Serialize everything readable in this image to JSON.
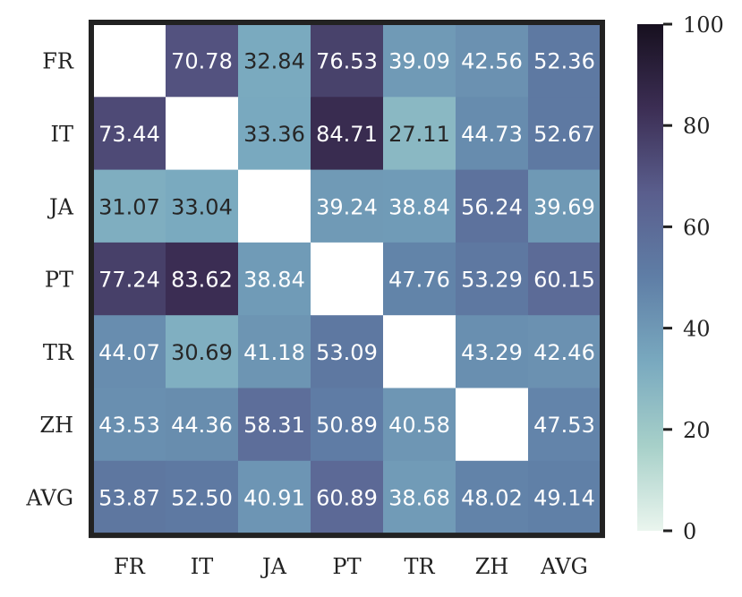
{
  "chart_data": {
    "type": "heatmap",
    "title": "",
    "xlabel": "",
    "ylabel": "",
    "x_categories": [
      "FR",
      "IT",
      "JA",
      "PT",
      "TR",
      "ZH",
      "AVG"
    ],
    "y_categories": [
      "FR",
      "IT",
      "JA",
      "PT",
      "TR",
      "ZH",
      "AVG"
    ],
    "values": [
      [
        null,
        70.78,
        32.84,
        76.53,
        39.09,
        42.56,
        52.36
      ],
      [
        73.44,
        null,
        33.36,
        84.71,
        27.11,
        44.73,
        52.67
      ],
      [
        31.07,
        33.04,
        null,
        39.24,
        38.84,
        56.24,
        39.69
      ],
      [
        77.24,
        83.62,
        38.84,
        null,
        47.76,
        53.29,
        60.15
      ],
      [
        44.07,
        30.69,
        41.18,
        53.09,
        null,
        43.29,
        42.46
      ],
      [
        43.53,
        44.36,
        58.31,
        50.89,
        40.58,
        null,
        47.53
      ],
      [
        53.87,
        52.5,
        40.91,
        60.89,
        38.68,
        48.02,
        49.14
      ]
    ],
    "value_labels": [
      [
        "",
        "70.78",
        "32.84",
        "76.53",
        "39.09",
        "42.56",
        "52.36"
      ],
      [
        "73.44",
        "",
        "33.36",
        "84.71",
        "27.11",
        "44.73",
        "52.67"
      ],
      [
        "31.07",
        "33.04",
        "",
        "39.24",
        "38.84",
        "56.24",
        "39.69"
      ],
      [
        "77.24",
        "83.62",
        "38.84",
        "",
        "47.76",
        "53.29",
        "60.15"
      ],
      [
        "44.07",
        "30.69",
        "41.18",
        "53.09",
        "",
        "43.29",
        "42.46"
      ],
      [
        "43.53",
        "44.36",
        "58.31",
        "50.89",
        "40.58",
        "",
        "47.53"
      ],
      [
        "53.87",
        "52.50",
        "40.91",
        "60.89",
        "38.68",
        "48.02",
        "49.14"
      ]
    ],
    "colorbar": {
      "range": [
        0,
        100
      ],
      "ticks": [
        0,
        20,
        40,
        60,
        80,
        100
      ],
      "tick_labels": [
        "0",
        "20",
        "40",
        "60",
        "80",
        "100"
      ]
    },
    "colormap_stops": [
      "#eaf5ee",
      "#a7d0c9",
      "#79a9bf",
      "#5f7ea6",
      "#5a5e8d",
      "#3c2e54",
      "#17101f"
    ],
    "grid": false,
    "frame_color": "#222222"
  }
}
